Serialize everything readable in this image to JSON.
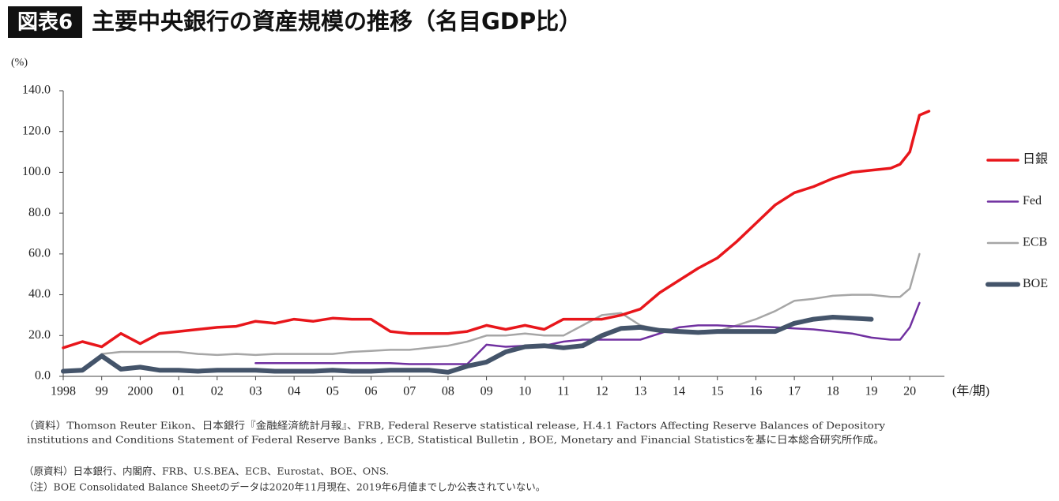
{
  "chart_data": {
    "type": "line",
    "badge": "図表6",
    "title": "主要中央銀行の資産規模の推移（名目GDP比）",
    "y_unit": "(%)",
    "x_unit": "(年/期)",
    "x": [
      1998,
      1998.5,
      1999,
      1999.5,
      2000,
      2000.5,
      2001,
      2001.5,
      2002,
      2002.5,
      2003,
      2003.5,
      2004,
      2004.5,
      2005,
      2005.5,
      2006,
      2006.5,
      2007,
      2007.5,
      2008,
      2008.5,
      2009,
      2009.5,
      2010,
      2010.5,
      2011,
      2011.5,
      2012,
      2012.5,
      2013,
      2013.5,
      2014,
      2014.5,
      2015,
      2015.5,
      2016,
      2016.5,
      2017,
      2017.5,
      2018,
      2018.5,
      2019,
      2019.5,
      2019.75,
      2020,
      2020.25,
      2020.5
    ],
    "series": [
      {
        "name": "日銀",
        "color": "#e8161b",
        "values": [
          14,
          17,
          14.5,
          21,
          16,
          21,
          22,
          23,
          24,
          24.5,
          27,
          26,
          28,
          27,
          28.5,
          28,
          28,
          22,
          21,
          21,
          21,
          22,
          25,
          23,
          25,
          23,
          28,
          28,
          28,
          30,
          33,
          41,
          47,
          53,
          58,
          66,
          75,
          84,
          90,
          93,
          97,
          100,
          101,
          102,
          104,
          110,
          128,
          130
        ]
      },
      {
        "name": "Fed",
        "color": "#7030a0",
        "values": [
          null,
          null,
          null,
          null,
          null,
          null,
          null,
          null,
          null,
          null,
          6.5,
          6.5,
          6.5,
          6.5,
          6.5,
          6.5,
          6.5,
          6.5,
          6,
          6,
          6,
          6,
          15.5,
          14.5,
          15,
          15,
          17,
          18,
          18,
          18,
          18,
          21,
          24,
          25,
          25,
          24.5,
          24.5,
          24,
          23.5,
          23,
          22,
          21,
          19,
          18,
          18,
          24,
          36,
          null
        ]
      },
      {
        "name": "ECB",
        "color": "#a6a6a6",
        "values": [
          null,
          null,
          11,
          12,
          12,
          12,
          12,
          11,
          10.5,
          11,
          10.5,
          11,
          11,
          11,
          11,
          12,
          12.5,
          13,
          13,
          14,
          15,
          17,
          20,
          20,
          21,
          20,
          20,
          25,
          30,
          31,
          25,
          23,
          22,
          22,
          22,
          25,
          28,
          32,
          37,
          38,
          39.5,
          40,
          40,
          39,
          39,
          43,
          60,
          null
        ]
      },
      {
        "name": "BOE",
        "color": "#44546a",
        "values": [
          2.5,
          3,
          10,
          3.5,
          4.5,
          3,
          3,
          2.5,
          3,
          3,
          3,
          2.5,
          2.5,
          2.5,
          3,
          2.5,
          2.5,
          3,
          3,
          3,
          2,
          5,
          7,
          12,
          14.5,
          15,
          14,
          15,
          20,
          23.5,
          24,
          22.5,
          22,
          21.5,
          22,
          22,
          22,
          22,
          26,
          28,
          29,
          28.5,
          28,
          null,
          null,
          null,
          null,
          null
        ]
      }
    ],
    "ylim": [
      0,
      140
    ],
    "yticks": [
      {
        "value": 0,
        "label": "0.0"
      },
      {
        "value": 20,
        "label": "20.0"
      },
      {
        "value": 40,
        "label": "40.0"
      },
      {
        "value": 60,
        "label": "60.0"
      },
      {
        "value": 80,
        "label": "80.0"
      },
      {
        "value": 100,
        "label": "100.0"
      },
      {
        "value": 120,
        "label": "120.0"
      },
      {
        "value": 140,
        "label": "140.0"
      }
    ],
    "xlim": [
      1998,
      2020.9
    ],
    "xticks": [
      {
        "value": 1998,
        "label": "1998"
      },
      {
        "value": 1999,
        "label": "99"
      },
      {
        "value": 2000,
        "label": "2000"
      },
      {
        "value": 2001,
        "label": "01"
      },
      {
        "value": 2002,
        "label": "02"
      },
      {
        "value": 2003,
        "label": "03"
      },
      {
        "value": 2004,
        "label": "04"
      },
      {
        "value": 2005,
        "label": "05"
      },
      {
        "value": 2006,
        "label": "06"
      },
      {
        "value": 2007,
        "label": "07"
      },
      {
        "value": 2008,
        "label": "08"
      },
      {
        "value": 2009,
        "label": "09"
      },
      {
        "value": 2010,
        "label": "10"
      },
      {
        "value": 2011,
        "label": "11"
      },
      {
        "value": 2012,
        "label": "12"
      },
      {
        "value": 2013,
        "label": "13"
      },
      {
        "value": 2014,
        "label": "14"
      },
      {
        "value": 2015,
        "label": "15"
      },
      {
        "value": 2016,
        "label": "16"
      },
      {
        "value": 2017,
        "label": "17"
      },
      {
        "value": 2018,
        "label": "18"
      },
      {
        "value": 2019,
        "label": "19"
      },
      {
        "value": 2020,
        "label": "20"
      }
    ],
    "grid": false,
    "legend": "right",
    "notes": [
      "（資料）Thomson Reuter Eikon、日本銀行『金融経済統計月報』、FRB, Federal Reserve statistical release, H.4.1 Factors Affecting Reserve Balances of Depository",
      "institutions and Conditions Statement of Federal Reserve Banks , ECB, Statistical Bulletin , BOE, Monetary and Financial Statisticsを基に日本総合研究所作成。",
      "（原資料）日本銀行、内閣府、FRB、U.S.BEA、ECB、Eurostat、BOE、ONS.",
      "（注）BOE Consolidated Balance Sheetのデータは2020年11月現在、2019年6月値までしか公表されていない。"
    ]
  }
}
